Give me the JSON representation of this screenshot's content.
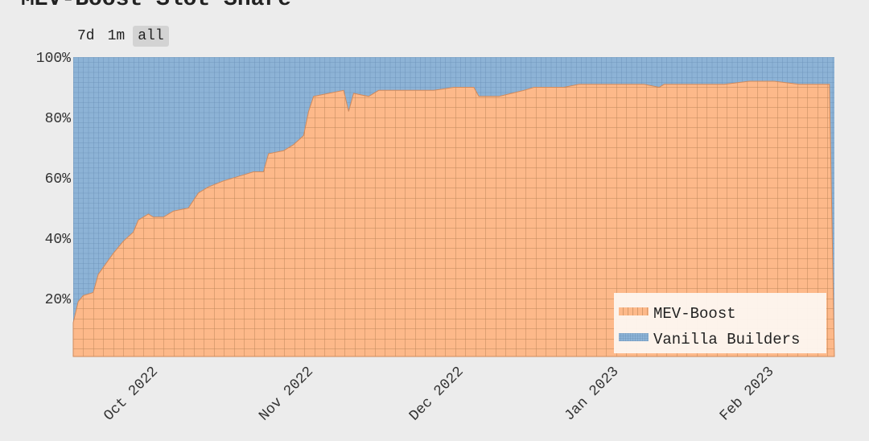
{
  "title": "MEV-Boost Slot Share",
  "range_buttons": [
    {
      "label": "7d",
      "active": false
    },
    {
      "label": "1m",
      "active": false
    },
    {
      "label": "all",
      "active": true
    }
  ],
  "colors": {
    "mev_boost": "#fdb98a",
    "vanilla": "#8db3d6",
    "grid_orange": "#b07a4c",
    "grid_blue": "#5f86ad"
  },
  "chart_data": {
    "type": "area",
    "stacked": true,
    "normalized": true,
    "title": "MEV-Boost Slot Share",
    "xlabel": "",
    "ylabel": "",
    "xlim": [
      "2022-09-15",
      "2023-02-14"
    ],
    "ylim": [
      0,
      100
    ],
    "y_ticks": [
      20,
      40,
      60,
      80,
      100
    ],
    "y_tick_labels": [
      "20%",
      "40%",
      "60%",
      "80%",
      "100%"
    ],
    "x_ticks": [
      "2022-10-01",
      "2022-11-01",
      "2022-12-01",
      "2023-01-01",
      "2023-02-01"
    ],
    "x_tick_labels": [
      "Oct 2022",
      "Nov 2022",
      "Dec 2022",
      "Jan 2023",
      "Feb 2023"
    ],
    "legend_position": "bottom-right",
    "legend": [
      "MEV-Boost",
      "Vanilla Builders"
    ],
    "x": [
      "2022-09-15",
      "2022-09-16",
      "2022-09-17",
      "2022-09-19",
      "2022-09-20",
      "2022-09-23",
      "2022-09-25",
      "2022-09-27",
      "2022-09-28",
      "2022-09-30",
      "2022-10-01",
      "2022-10-03",
      "2022-10-05",
      "2022-10-08",
      "2022-10-10",
      "2022-10-12",
      "2022-10-15",
      "2022-10-19",
      "2022-10-21",
      "2022-10-23",
      "2022-10-24",
      "2022-10-27",
      "2022-10-29",
      "2022-10-31",
      "2022-11-01",
      "2022-11-02",
      "2022-11-05",
      "2022-11-08",
      "2022-11-09",
      "2022-11-10",
      "2022-11-13",
      "2022-11-15",
      "2022-11-20",
      "2022-11-26",
      "2022-11-30",
      "2022-12-04",
      "2022-12-05",
      "2022-12-09",
      "2022-12-14",
      "2022-12-16",
      "2022-12-22",
      "2022-12-25",
      "2023-01-01",
      "2023-01-07",
      "2023-01-10",
      "2023-01-11",
      "2023-01-19",
      "2023-01-23",
      "2023-01-28",
      "2023-02-02",
      "2023-02-07",
      "2023-02-10",
      "2023-02-13",
      "2023-02-14"
    ],
    "series": [
      {
        "name": "MEV-Boost",
        "values": [
          12,
          19,
          21,
          22,
          28,
          35,
          39,
          42,
          46,
          48,
          47,
          47,
          49,
          50,
          55,
          57,
          59,
          61,
          62,
          62,
          68,
          69,
          71,
          74,
          82,
          87,
          88,
          89,
          82,
          88,
          87,
          89,
          89,
          89,
          90,
          90,
          87,
          87,
          89,
          90,
          90,
          91,
          91,
          91,
          90,
          91,
          91,
          91,
          92,
          92,
          91,
          91,
          91,
          0
        ]
      },
      {
        "name": "Vanilla Builders",
        "values": [
          88,
          81,
          79,
          78,
          72,
          65,
          61,
          58,
          54,
          52,
          53,
          53,
          51,
          50,
          45,
          43,
          41,
          39,
          38,
          38,
          32,
          31,
          29,
          26,
          18,
          13,
          12,
          11,
          18,
          12,
          13,
          11,
          11,
          11,
          10,
          10,
          13,
          13,
          11,
          10,
          10,
          9,
          9,
          9,
          10,
          9,
          9,
          9,
          8,
          8,
          9,
          9,
          9,
          100
        ]
      }
    ]
  }
}
